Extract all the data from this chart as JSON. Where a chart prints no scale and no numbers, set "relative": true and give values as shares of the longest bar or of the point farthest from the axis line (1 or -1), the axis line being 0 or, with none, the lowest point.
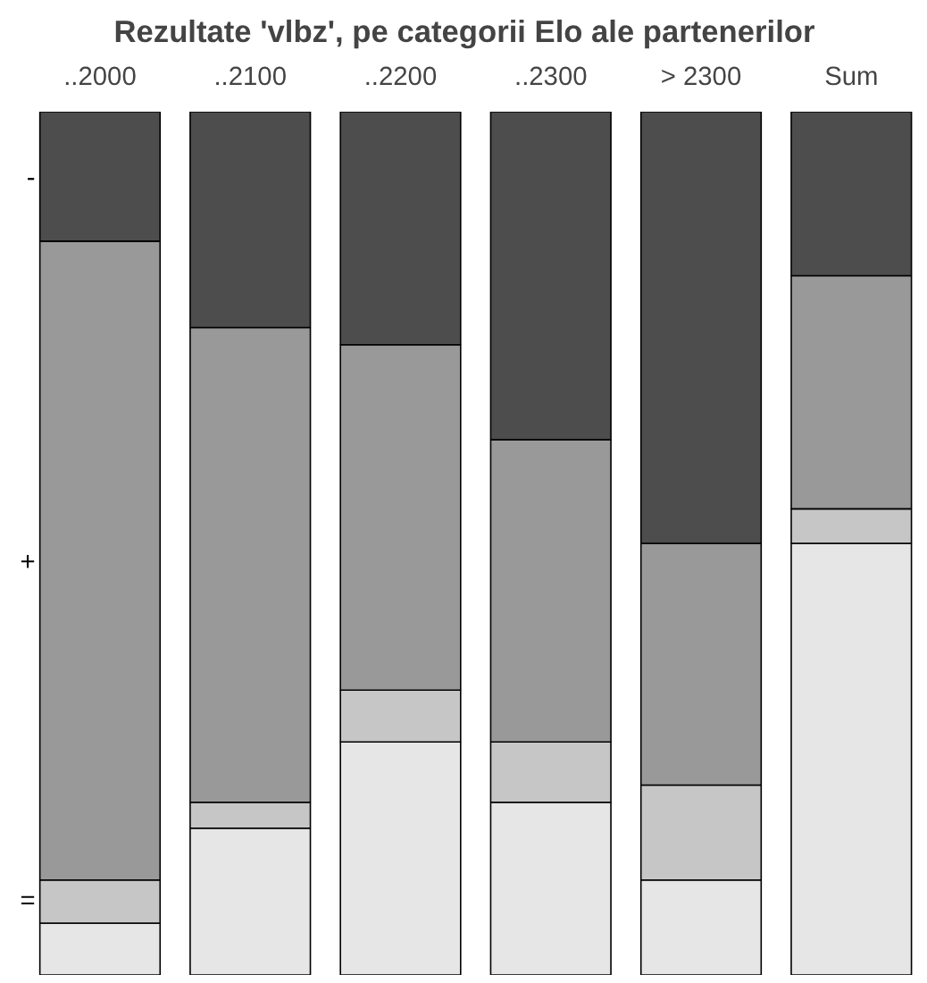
{
  "chart_data": {
    "type": "bar",
    "stacked": true,
    "relative": true,
    "title": "Rezultate 'vlbz', pe categorii Elo ale partenerilor",
    "categories": [
      "..2000",
      "..2100",
      "..2200",
      "..2300",
      "> 2300",
      "Sum"
    ],
    "series": [
      {
        "color": "#e6e6e6",
        "values": [
          0.06,
          0.17,
          0.27,
          0.2,
          0.11,
          0.5
        ]
      },
      {
        "name": "=",
        "color": "#c6c6c6",
        "values": [
          0.05,
          0.03,
          0.06,
          0.07,
          0.11,
          0.04
        ]
      },
      {
        "name": "+",
        "color": "#999999",
        "values": [
          0.74,
          0.55,
          0.4,
          0.35,
          0.28,
          0.27
        ]
      },
      {
        "name": "-",
        "color": "#4d4d4d",
        "values": [
          0.15,
          0.25,
          0.27,
          0.38,
          0.5,
          0.19
        ]
      }
    ],
    "grid": false
  }
}
